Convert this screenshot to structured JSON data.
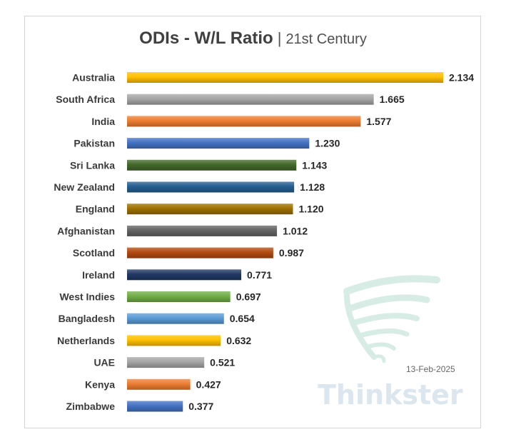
{
  "chart_data": {
    "type": "bar",
    "orientation": "horizontal",
    "title": "ODIs - W/L Ratio",
    "title_separator": "|",
    "subtitle": "21st Century",
    "categories": [
      "Australia",
      "South Africa",
      "India",
      "Pakistan",
      "Sri Lanka",
      "New Zealand",
      "England",
      "Afghanistan",
      "Scotland",
      "Ireland",
      "West Indies",
      "Bangladesh",
      "Netherlands",
      "UAE",
      "Kenya",
      "Zimbabwe"
    ],
    "values": [
      2.134,
      1.665,
      1.577,
      1.23,
      1.143,
      1.128,
      1.12,
      1.012,
      0.987,
      0.771,
      0.697,
      0.654,
      0.632,
      0.521,
      0.427,
      0.377
    ],
    "value_labels": [
      "2.134",
      "1.665",
      "1.577",
      "1.230",
      "1.143",
      "1.128",
      "1.120",
      "1.012",
      "0.987",
      "0.771",
      "0.697",
      "0.654",
      "0.632",
      "0.521",
      "0.427",
      "0.377"
    ],
    "colors": [
      "#ffc000",
      "#a5a5a5",
      "#ed7d31",
      "#4472c4",
      "#43682b",
      "#255e91",
      "#9e7000",
      "#636363",
      "#b34a10",
      "#203864",
      "#70ad47",
      "#5b9bd5",
      "#ffc000",
      "#a5a5a5",
      "#ed7d31",
      "#4472c4"
    ],
    "xlim": [
      0,
      2.134
    ],
    "grid": false,
    "legend": "none"
  },
  "watermark": {
    "brand": "Thinkster",
    "date": "13-Feb-2025",
    "icon": "swirl-logo-icon"
  }
}
